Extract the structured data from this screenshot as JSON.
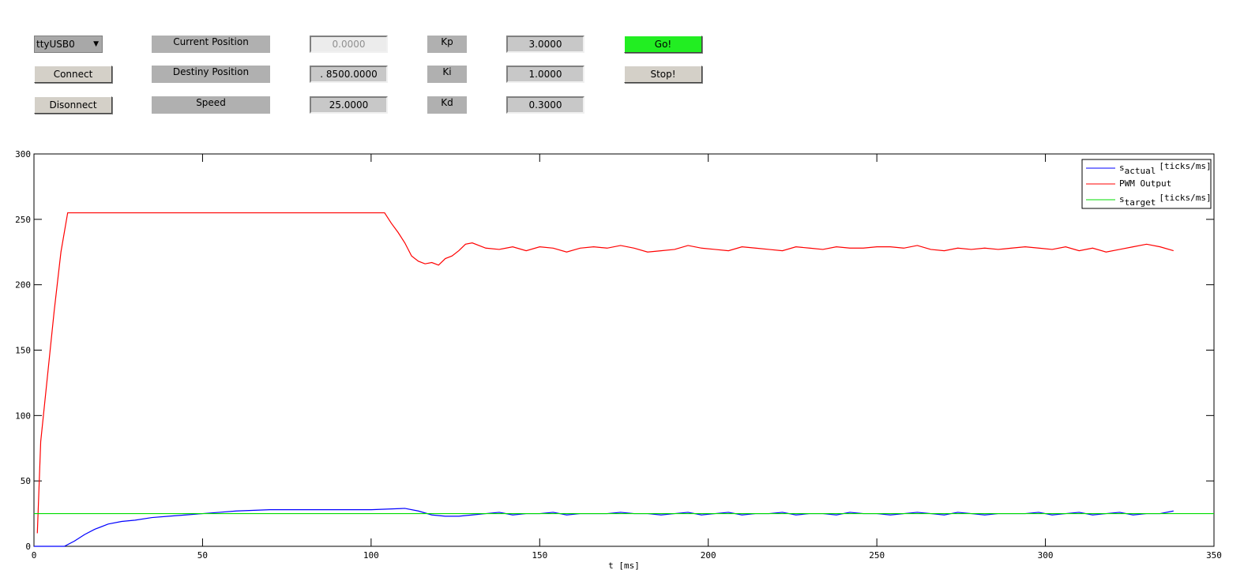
{
  "panel": {
    "port_select": "ttyUSB0",
    "connect": "Connect",
    "disconnect": "Disonnect",
    "current_position_label": "Current Position",
    "current_position": "0.0000",
    "destiny_position_label": "Destiny Position",
    "destiny_position": ". 8500.0000",
    "speed_label": "Speed",
    "speed": "25.0000",
    "kp_label": "Kp",
    "kp": "3.0000",
    "ki_label": "Ki",
    "ki": "1.0000",
    "kd_label": "Kd",
    "kd": "0.3000",
    "go": "Go!",
    "stop": "Stop!"
  },
  "chart_data": {
    "type": "line",
    "xlabel": "t [ms]",
    "xlim": [
      0,
      350
    ],
    "ylim": [
      0,
      300
    ],
    "xticks": [
      0,
      50,
      100,
      150,
      200,
      250,
      300,
      350
    ],
    "yticks": [
      0,
      50,
      100,
      150,
      200,
      250,
      300
    ],
    "legend": "upper right",
    "series": [
      {
        "name": "s",
        "name_sub": "actual",
        "name_unit": "[ticks/ms]",
        "color": "#0000ff",
        "x": [
          0,
          9,
          12,
          15,
          18,
          22,
          26,
          30,
          35,
          40,
          45,
          50,
          55,
          60,
          70,
          80,
          90,
          100,
          110,
          114,
          118,
          122,
          126,
          130,
          134,
          138,
          142,
          146,
          150,
          154,
          158,
          162,
          166,
          170,
          174,
          178,
          182,
          186,
          190,
          194,
          198,
          202,
          206,
          210,
          214,
          218,
          222,
          226,
          230,
          234,
          238,
          242,
          246,
          250,
          254,
          258,
          262,
          266,
          270,
          274,
          278,
          282,
          286,
          290,
          294,
          298,
          302,
          306,
          310,
          314,
          318,
          322,
          326,
          330,
          334,
          338
        ],
        "values": [
          0,
          0,
          4,
          9,
          13,
          17,
          19,
          20,
          22,
          23,
          24,
          25,
          26,
          27,
          28,
          28,
          28,
          28,
          29,
          27,
          24,
          23,
          23,
          24,
          25,
          26,
          24,
          25,
          25,
          26,
          24,
          25,
          25,
          25,
          26,
          25,
          25,
          24,
          25,
          26,
          24,
          25,
          26,
          24,
          25,
          25,
          26,
          24,
          25,
          25,
          24,
          26,
          25,
          25,
          24,
          25,
          26,
          25,
          24,
          26,
          25,
          24,
          25,
          25,
          25,
          26,
          24,
          25,
          26,
          24,
          25,
          26,
          24,
          25,
          25,
          27
        ]
      },
      {
        "name": "PWM Output",
        "color": "#ff0000",
        "x": [
          1,
          2,
          4,
          6,
          8,
          10,
          20,
          40,
          60,
          80,
          100,
          104,
          106,
          108,
          110,
          112,
          114,
          116,
          118,
          120,
          122,
          124,
          126,
          128,
          130,
          134,
          138,
          142,
          146,
          150,
          154,
          158,
          162,
          166,
          170,
          174,
          178,
          182,
          186,
          190,
          194,
          198,
          202,
          206,
          210,
          214,
          218,
          222,
          226,
          230,
          234,
          238,
          242,
          246,
          250,
          254,
          258,
          262,
          266,
          270,
          274,
          278,
          282,
          286,
          290,
          294,
          298,
          302,
          306,
          310,
          314,
          318,
          322,
          326,
          330,
          334,
          338
        ],
        "values": [
          10,
          80,
          130,
          180,
          225,
          255,
          255,
          255,
          255,
          255,
          255,
          255,
          247,
          240,
          232,
          222,
          218,
          216,
          217,
          215,
          220,
          222,
          226,
          231,
          232,
          228,
          227,
          229,
          226,
          229,
          228,
          225,
          228,
          229,
          228,
          230,
          228,
          225,
          226,
          227,
          230,
          228,
          227,
          226,
          229,
          228,
          227,
          226,
          229,
          228,
          227,
          229,
          228,
          228,
          229,
          229,
          228,
          230,
          227,
          226,
          228,
          227,
          228,
          227,
          228,
          229,
          228,
          227,
          229,
          226,
          228,
          225,
          227,
          229,
          231,
          229,
          226
        ]
      },
      {
        "name": "s",
        "name_sub": "target",
        "name_unit": "[ticks/ms]",
        "color": "#00dd00",
        "x": [
          0,
          350
        ],
        "values": [
          25,
          25
        ]
      }
    ]
  }
}
